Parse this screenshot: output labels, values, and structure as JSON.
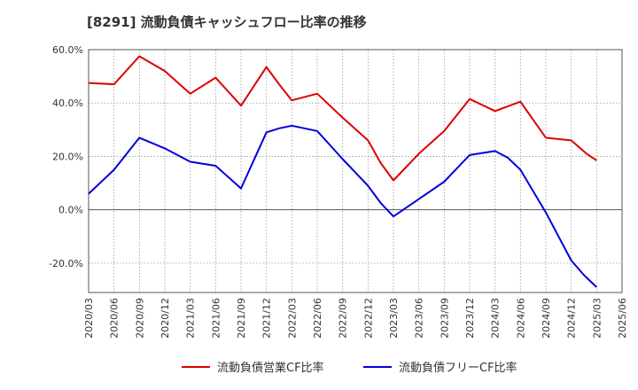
{
  "chart_data": {
    "type": "line",
    "title": "[8291]  流動負債キャッシュフロー比率の推移",
    "xlabel": "",
    "ylabel": "",
    "ylim": [
      -31,
      60
    ],
    "y_ticks": [
      60,
      40,
      20,
      0,
      -20
    ],
    "y_tick_labels": [
      "60.0%",
      "40.0%",
      "20.0%",
      "0.0%",
      "-20.0%"
    ],
    "x_tick_labels": [
      "2020/03",
      "2020/06",
      "2020/09",
      "2020/12",
      "2021/03",
      "2021/06",
      "2021/09",
      "2021/12",
      "2022/03",
      "2022/06",
      "2022/09",
      "2022/12",
      "2023/03",
      "2023/06",
      "2023/09",
      "2023/12",
      "2024/03",
      "2024/06",
      "2024/09",
      "2024/12",
      "2025/03",
      "2025/06"
    ],
    "grid": true,
    "legend_position": "bottom",
    "series": [
      {
        "name": "流動負債営業CF比率",
        "color": "#dd0000",
        "points": [
          [
            0,
            47.5
          ],
          [
            1,
            47
          ],
          [
            2,
            57.5
          ],
          [
            3,
            52
          ],
          [
            4,
            43.5
          ],
          [
            5,
            49.5
          ],
          [
            6,
            39
          ],
          [
            7,
            53.5
          ],
          [
            7.5,
            47
          ],
          [
            8,
            41
          ],
          [
            9,
            43.5
          ],
          [
            10,
            34.5
          ],
          [
            11,
            26
          ],
          [
            11.5,
            17.5
          ],
          [
            12,
            11
          ],
          [
            13,
            21
          ],
          [
            14,
            29.5
          ],
          [
            15,
            41.5
          ],
          [
            16,
            37
          ],
          [
            17,
            40.5
          ],
          [
            18,
            27
          ],
          [
            19,
            26
          ],
          [
            19.6,
            21
          ],
          [
            20,
            18.5
          ]
        ]
      },
      {
        "name": "流動負債フリーCF比率",
        "color": "#0000dd",
        "points": [
          [
            0,
            6
          ],
          [
            1,
            15
          ],
          [
            2,
            27
          ],
          [
            3,
            23
          ],
          [
            4,
            18
          ],
          [
            5,
            16.5
          ],
          [
            6,
            8
          ],
          [
            7,
            29
          ],
          [
            7.5,
            30.5
          ],
          [
            8,
            31.5
          ],
          [
            9,
            29.5
          ],
          [
            10,
            19
          ],
          [
            11,
            9
          ],
          [
            11.5,
            2.5
          ],
          [
            12,
            -2.5
          ],
          [
            13,
            4
          ],
          [
            14,
            10.5
          ],
          [
            15,
            20.5
          ],
          [
            16,
            22
          ],
          [
            16.5,
            19.5
          ],
          [
            17,
            15
          ],
          [
            18,
            -1
          ],
          [
            19,
            -19
          ],
          [
            19.5,
            -24.5
          ],
          [
            20,
            -29
          ]
        ]
      }
    ]
  }
}
